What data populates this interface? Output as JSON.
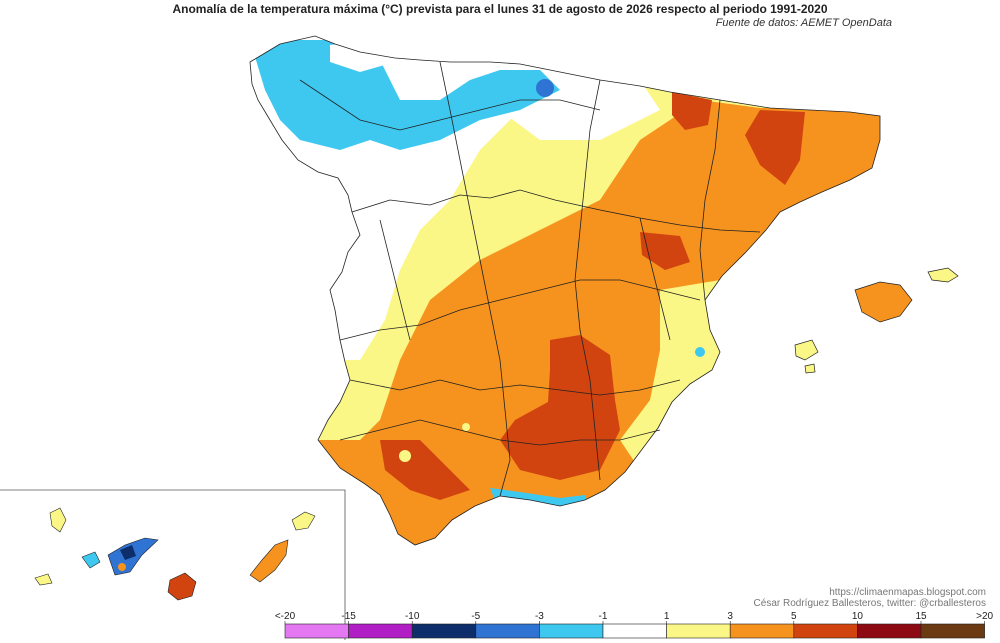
{
  "title": "Anomalía de la temperatura máxima (°C) prevista para el lunes 31 de agosto de 2026 respecto al periodo 1991-2020",
  "source": "Fuente de datos: AEMET OpenData",
  "credit": {
    "blog": "https://climaenmapas.blogspot.com",
    "author": "César Rodríguez Ballesteros, twitter: @crballesteros"
  },
  "legend": {
    "ticks": [
      "<-20",
      "-15",
      "-10",
      "-5",
      "-3",
      "-1",
      "1",
      "3",
      "5",
      "10",
      "15",
      ">20"
    ],
    "colors": [
      "#e477f2",
      "#b21ec6",
      "#0d2e6b",
      "#2f73d3",
      "#3ec8f0",
      "#ffffff",
      "#fbf786",
      "#f6921e",
      "#d14410",
      "#8e0a12",
      "#6b3a12"
    ]
  },
  "palette": {
    "white": "#ffffff",
    "pale_yellow": "#fbf786",
    "orange": "#f6921e",
    "red_orange": "#d14410",
    "cyan": "#3ec8f0",
    "blue": "#2f73d3",
    "dark_blue": "#0d2e6b",
    "outline": "#222222"
  }
}
